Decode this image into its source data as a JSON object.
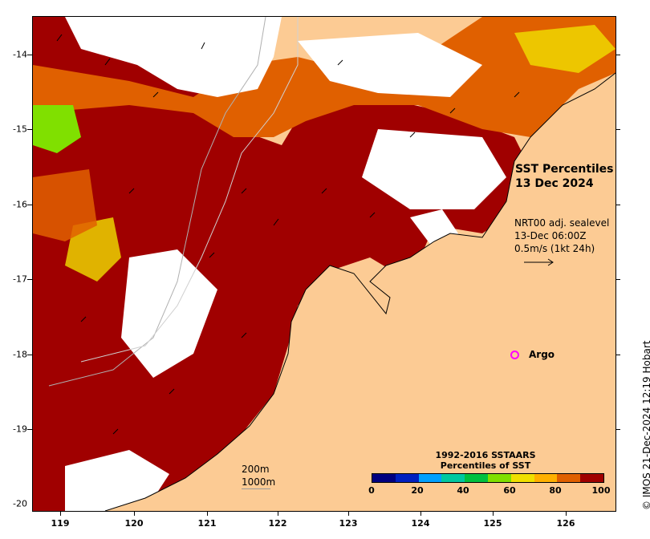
{
  "title": {
    "line1": "SST Percentiles",
    "line2": "13 Dec 2024"
  },
  "wind": {
    "line1": "NRT00 adj. sealevel",
    "line2": "13-Dec 06:00Z",
    "line3": "0.5m/s (1kt 24h)"
  },
  "argo": {
    "label": "Argo",
    "lon": 125.3,
    "lat": -18.0,
    "color": "#ff00ff"
  },
  "scale": {
    "line1": "200m",
    "line2": "1000m"
  },
  "legend": {
    "title_line1": "1992-2016 SSTAARS",
    "title_line2": "Percentiles of SST",
    "ticks": [
      "0",
      "20",
      "40",
      "60",
      "80",
      "100"
    ],
    "colors": [
      "#000080",
      "#0020c0",
      "#00a0ff",
      "#00c8a0",
      "#00c040",
      "#80e000",
      "#f0e000",
      "#ffb000",
      "#e06000",
      "#a00000"
    ]
  },
  "axes": {
    "lon_ticks": [
      "119",
      "120",
      "121",
      "122",
      "123",
      "124",
      "125",
      "126"
    ],
    "lat_ticks": [
      "-14",
      "-15",
      "-16",
      "-17",
      "-18",
      "-19",
      "-20"
    ],
    "lon_range": [
      118.6,
      126.7
    ],
    "lat_range": [
      -13.5,
      -20.05
    ]
  },
  "credit": "© IMOS 21-Dec-2024 12:19 Hobart",
  "colors": {
    "land": "#fccb94",
    "dominant_sst": "#a00000",
    "no_data": "#ffffff"
  }
}
